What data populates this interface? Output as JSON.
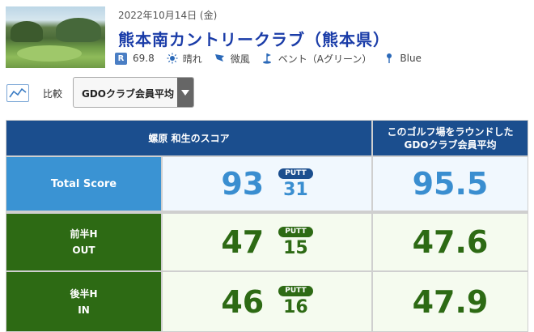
{
  "header": {
    "date": "2022年10月14日 (金)",
    "course_title": "熊本南カントリークラブ（熊本県）",
    "rating_badge": "R",
    "rating": "69.8",
    "weather": "晴れ",
    "wind": "微風",
    "green": "ベント（Aグリーン）",
    "tee": "Blue",
    "icons": [
      "sun-icon",
      "wind-flag-icon",
      "green-flag-icon",
      "tee-pin-icon"
    ]
  },
  "compare": {
    "label": "比較",
    "selected": "GDOクラブ会員平均"
  },
  "table": {
    "header_player": "螺原 和生のスコア",
    "header_avg_line1": "このゴルフ場をラウンドした",
    "header_avg_line2": "GDOクラブ会員平均",
    "putt_label": "PUTT",
    "rows": [
      {
        "label1": "Total Score",
        "label2": "",
        "score": "93",
        "putt": "31",
        "avg": "95.5"
      },
      {
        "label1": "前半H",
        "label2": "OUT",
        "score": "47",
        "putt": "15",
        "avg": "47.6"
      },
      {
        "label1": "後半H",
        "label2": "IN",
        "score": "46",
        "putt": "16",
        "avg": "47.9"
      }
    ]
  },
  "colors": {
    "header_navy": "#1b4e8e",
    "total_blue": "#3a93d3",
    "half_green": "#2d6a14",
    "title_blue": "#1a3ca8"
  }
}
